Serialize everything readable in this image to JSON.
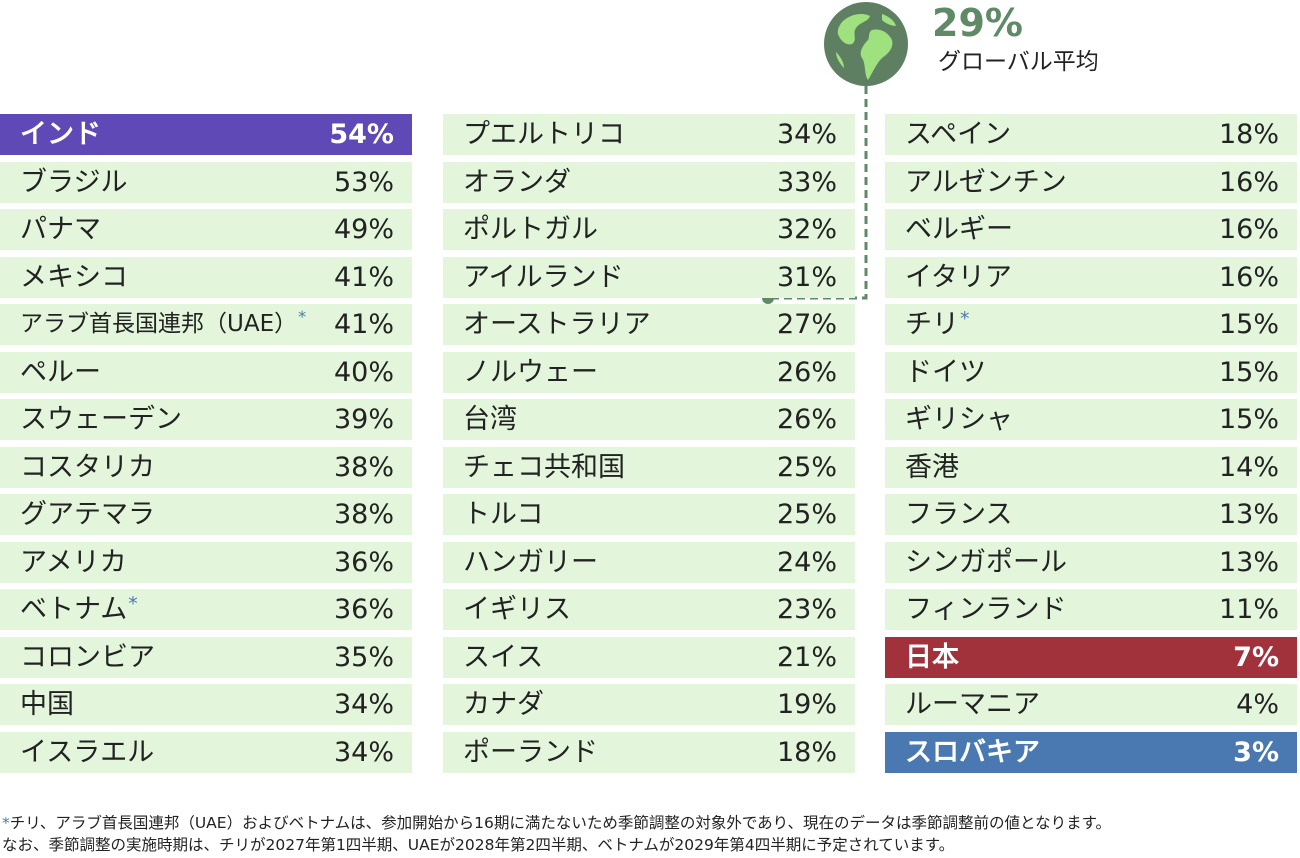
{
  "colors": {
    "row_bg": "#e3f6dc",
    "india": "#5e49b6",
    "japan": "#a1313b",
    "slovakia": "#4a78b0",
    "global": "#5f8a65"
  },
  "global": {
    "value": "29%",
    "label": "グローバル平均",
    "icon": "globe-icon"
  },
  "chart_data": {
    "type": "table",
    "unit": "%",
    "columns": [
      [
        {
          "country": "インド",
          "value": 54,
          "label": "54%",
          "highlight": "india"
        },
        {
          "country": "ブラジル",
          "value": 53,
          "label": "53%"
        },
        {
          "country": "パナマ",
          "value": 49,
          "label": "49%"
        },
        {
          "country": "メキシコ",
          "value": 41,
          "label": "41%"
        },
        {
          "country": "アラブ首長国連邦（UAE）",
          "value": 41,
          "label": "41%",
          "asterisk": "*"
        },
        {
          "country": "ペルー",
          "value": 40,
          "label": "40%"
        },
        {
          "country": "スウェーデン",
          "value": 39,
          "label": "39%"
        },
        {
          "country": "コスタリカ",
          "value": 38,
          "label": "38%"
        },
        {
          "country": "グアテマラ",
          "value": 38,
          "label": "38%"
        },
        {
          "country": "アメリカ",
          "value": 36,
          "label": "36%"
        },
        {
          "country": "ベトナム",
          "value": 36,
          "label": "36%",
          "asterisk": "*"
        },
        {
          "country": "コロンビア",
          "value": 35,
          "label": "35%"
        },
        {
          "country": "中国",
          "value": 34,
          "label": "34%"
        },
        {
          "country": "イスラエル",
          "value": 34,
          "label": "34%"
        }
      ],
      [
        {
          "country": "プエルトリコ",
          "value": 34,
          "label": "34%"
        },
        {
          "country": "オランダ",
          "value": 33,
          "label": "33%"
        },
        {
          "country": "ポルトガル",
          "value": 32,
          "label": "32%"
        },
        {
          "country": "アイルランド",
          "value": 31,
          "label": "31%"
        },
        {
          "country": "オーストラリア",
          "value": 27,
          "label": "27%"
        },
        {
          "country": "ノルウェー",
          "value": 26,
          "label": "26%"
        },
        {
          "country": "台湾",
          "value": 26,
          "label": "26%"
        },
        {
          "country": "チェコ共和国",
          "value": 25,
          "label": "25%"
        },
        {
          "country": "トルコ",
          "value": 25,
          "label": "25%"
        },
        {
          "country": "ハンガリー",
          "value": 24,
          "label": "24%"
        },
        {
          "country": "イギリス",
          "value": 23,
          "label": "23%"
        },
        {
          "country": "スイス",
          "value": 21,
          "label": "21%"
        },
        {
          "country": "カナダ",
          "value": 19,
          "label": "19%"
        },
        {
          "country": "ポーランド",
          "value": 18,
          "label": "18%"
        }
      ],
      [
        {
          "country": "スペイン",
          "value": 18,
          "label": "18%"
        },
        {
          "country": "アルゼンチン",
          "value": 16,
          "label": "16%"
        },
        {
          "country": "ベルギー",
          "value": 16,
          "label": "16%"
        },
        {
          "country": "イタリア",
          "value": 16,
          "label": "16%"
        },
        {
          "country": "チリ",
          "value": 15,
          "label": "15%",
          "asterisk": "*"
        },
        {
          "country": "ドイツ",
          "value": 15,
          "label": "15%"
        },
        {
          "country": "ギリシャ",
          "value": 15,
          "label": "15%"
        },
        {
          "country": "香港",
          "value": 14,
          "label": "14%"
        },
        {
          "country": "フランス",
          "value": 13,
          "label": "13%"
        },
        {
          "country": "シンガポール",
          "value": 13,
          "label": "13%"
        },
        {
          "country": "フィンランド",
          "value": 11,
          "label": "11%"
        },
        {
          "country": "日本",
          "value": 7,
          "label": "7%",
          "highlight": "japan"
        },
        {
          "country": "ルーマニア",
          "value": 4,
          "label": "4%"
        },
        {
          "country": "スロバキア",
          "value": 3,
          "label": "3%",
          "highlight": "slovakia"
        }
      ]
    ]
  },
  "footnote": {
    "asterisk": "*",
    "line1": "チリ、アラブ首長国連邦（UAE）およびベトナムは、参加開始から16期に満たないため季節調整の対象外であり、現在のデータは季節調整前の値となります。",
    "line2": "なお、季節調整の実施時期は、チリが2027年第1四半期、UAEが2028年第2四半期、ベトナムが2029年第4四半期に予定されています。"
  }
}
